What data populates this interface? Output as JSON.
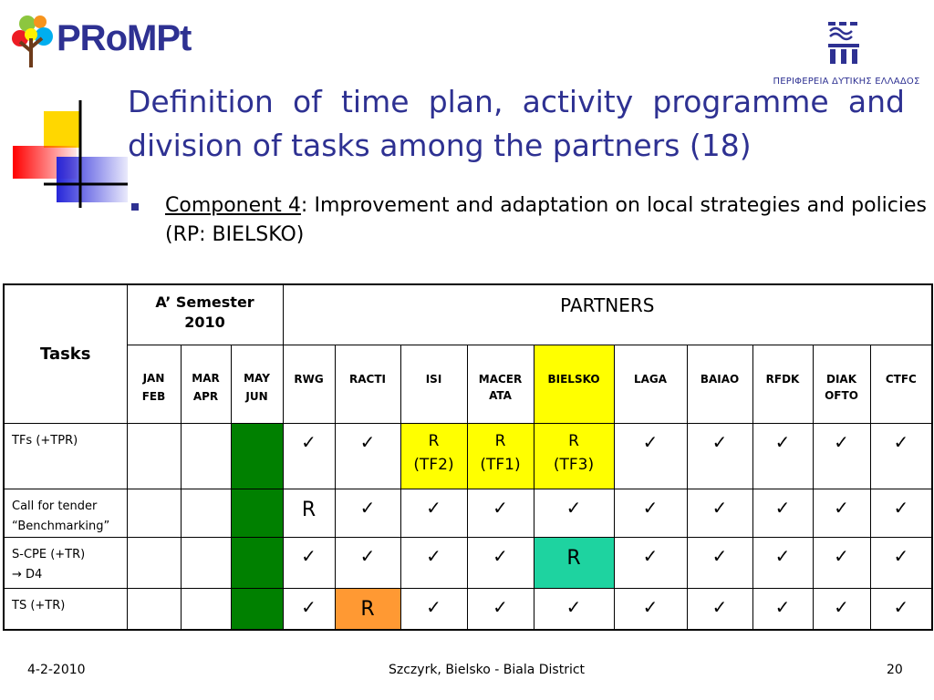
{
  "header": {
    "logo_text": "PRoMPt",
    "partner_logo_caption": "ΠΕΡΙΦΕΡΕΙΑ ΔΥΤΙΚΗΣ ΕΛΛΑΔΟΣ"
  },
  "title": "Definition of time plan, activity programme and division of tasks among the partners (18)",
  "bullet": {
    "component_label": "Component 4",
    "text": ": Improvement and adaptation on local strategies and policies (RP: BIELSKO)"
  },
  "table": {
    "tasks_header": "Tasks",
    "semester_header_line1": "A’  Semester",
    "semester_header_line2": "2010",
    "partners_header": "PARTNERS",
    "months": [
      {
        "l1": "JAN",
        "l2": "FEB"
      },
      {
        "l1": "MAR",
        "l2": "APR"
      },
      {
        "l1": "MAY",
        "l2": "JUN"
      }
    ],
    "partners": [
      {
        "l1": "RWG",
        "l2": ""
      },
      {
        "l1": "RACTI",
        "l2": ""
      },
      {
        "l1": "ISI",
        "l2": ""
      },
      {
        "l1": "MACER",
        "l2": "ATA"
      },
      {
        "l1": "BIELSKO",
        "l2": ""
      },
      {
        "l1": "LAGA",
        "l2": ""
      },
      {
        "l1": "BAIAO",
        "l2": ""
      },
      {
        "l1": "RFDK",
        "l2": ""
      },
      {
        "l1": "DIAK",
        "l2": "OFTO"
      },
      {
        "l1": "CTFC",
        "l2": ""
      }
    ],
    "highlight_partner_color": "#ffff00",
    "rows": [
      {
        "task_l1": "TFs (+TPR)",
        "task_l2": "",
        "months": [
          "",
          "",
          "active"
        ],
        "cells": [
          {
            "l1": "✓"
          },
          {
            "l1": "✓"
          },
          {
            "l1": "R",
            "l2": "(TF2)",
            "color": "#ffff00"
          },
          {
            "l1": "R",
            "l2": "(TF1)",
            "color": "#ffff00"
          },
          {
            "l1": "R",
            "l2": "(TF3)",
            "color": "#ffff00"
          },
          {
            "l1": "✓"
          },
          {
            "l1": "✓"
          },
          {
            "l1": "✓"
          },
          {
            "l1": "✓"
          },
          {
            "l1": "✓"
          }
        ]
      },
      {
        "task_l1": "Call for tender",
        "task_l2": "“Benchmarking”",
        "months": [
          "",
          "",
          "active"
        ],
        "cells": [
          {
            "l1": "R",
            "big": true
          },
          {
            "l1": "✓"
          },
          {
            "l1": "✓"
          },
          {
            "l1": "✓"
          },
          {
            "l1": "✓"
          },
          {
            "l1": "✓"
          },
          {
            "l1": "✓"
          },
          {
            "l1": "✓"
          },
          {
            "l1": "✓"
          },
          {
            "l1": "✓"
          }
        ]
      },
      {
        "task_l1": "S-CPE (+TR)",
        "task_l2": "→ D4",
        "months": [
          "",
          "",
          "active"
        ],
        "cells": [
          {
            "l1": "✓"
          },
          {
            "l1": "✓"
          },
          {
            "l1": "✓"
          },
          {
            "l1": "✓"
          },
          {
            "l1": "R",
            "big": true,
            "color": "#1ed3a0"
          },
          {
            "l1": "✓"
          },
          {
            "l1": "✓"
          },
          {
            "l1": "✓"
          },
          {
            "l1": "✓"
          },
          {
            "l1": "✓"
          }
        ]
      },
      {
        "task_l1": "TS (+TR)",
        "task_l2": "",
        "months": [
          "",
          "",
          "active"
        ],
        "cells": [
          {
            "l1": "✓"
          },
          {
            "l1": "R",
            "big": true,
            "color": "#ff9933"
          },
          {
            "l1": "✓"
          },
          {
            "l1": "✓"
          },
          {
            "l1": "✓"
          },
          {
            "l1": "✓"
          },
          {
            "l1": "✓"
          },
          {
            "l1": "✓"
          },
          {
            "l1": "✓"
          },
          {
            "l1": "✓"
          }
        ]
      }
    ],
    "active_month_color": "#008000"
  },
  "footer": {
    "date": "4-2-2010",
    "location": "Szczyrk, Bielsko - Biala District",
    "page": "20"
  }
}
